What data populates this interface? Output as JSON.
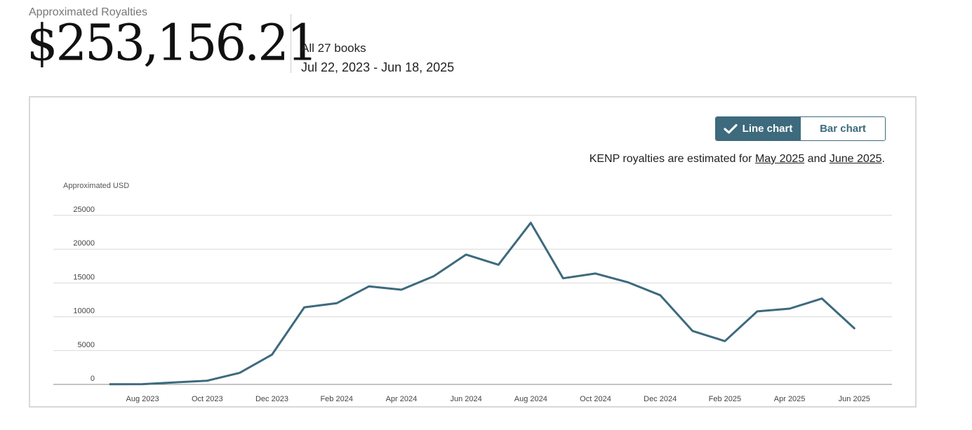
{
  "summary": {
    "label": "Approximated Royalties",
    "amount": "$253,156.21",
    "books": "All 27 books",
    "date_range": "Jul 22, 2023 - Jun 18, 2025"
  },
  "toggle": {
    "line_label": "Line chart",
    "bar_label": "Bar chart",
    "active": "line"
  },
  "note": {
    "prefix": "KENP royalties are estimated for ",
    "link1": "May 2025",
    "middle": " and ",
    "link2": "June 2025",
    "suffix": "."
  },
  "colors": {
    "accent": "#3d6a7d",
    "grid": "#d9d9d9",
    "axis": "#8a8a8a"
  },
  "icons": {
    "toggle_check": "checkmark-icon"
  },
  "chart_data": {
    "type": "line",
    "ylabel": "Approximated USD",
    "ylim": [
      0,
      25000
    ],
    "yticks": [
      0,
      5000,
      10000,
      15000,
      20000,
      25000
    ],
    "grid": true,
    "x": [
      "Jul 2023",
      "Aug 2023",
      "Sep 2023",
      "Oct 2023",
      "Nov 2023",
      "Dec 2023",
      "Jan 2024",
      "Feb 2024",
      "Mar 2024",
      "Apr 2024",
      "May 2024",
      "Jun 2024",
      "Jul 2024",
      "Aug 2024",
      "Sep 2024",
      "Oct 2024",
      "Nov 2024",
      "Dec 2024",
      "Jan 2025",
      "Feb 2025",
      "Mar 2025",
      "Apr 2025",
      "May 2025",
      "Jun 2025"
    ],
    "xticks": [
      "Aug 2023",
      "Oct 2023",
      "Dec 2023",
      "Feb 2024",
      "Apr 2024",
      "Jun 2024",
      "Aug 2024",
      "Oct 2024",
      "Dec 2024",
      "Feb 2025",
      "Apr 2025",
      "Jun 2025"
    ],
    "series": [
      {
        "values": [
          20,
          40,
          300,
          550,
          1700,
          4400,
          11400,
          12000,
          14500,
          14000,
          16000,
          19200,
          17700,
          23900,
          15700,
          16400,
          15100,
          13200,
          7900,
          6400,
          10800,
          11200,
          12700,
          8300
        ]
      }
    ]
  }
}
